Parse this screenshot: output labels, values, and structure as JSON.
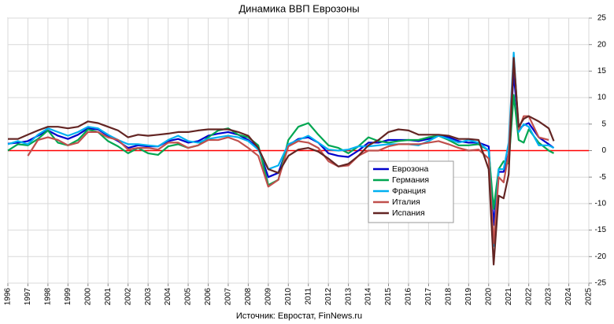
{
  "chart_data": {
    "type": "line",
    "title": "Динамика ВВП Еврозоны",
    "source": "Источник: Евростат, FinNews.ru",
    "x": [
      1996.0,
      1996.5,
      1997.0,
      1997.5,
      1998.0,
      1998.5,
      1999.0,
      1999.5,
      2000.0,
      2000.5,
      2001.0,
      2001.5,
      2002.0,
      2002.5,
      2003.0,
      2003.5,
      2004.0,
      2004.5,
      2005.0,
      2005.5,
      2006.0,
      2006.5,
      2007.0,
      2007.5,
      2008.0,
      2008.5,
      2009.0,
      2009.5,
      2010.0,
      2010.5,
      2011.0,
      2011.5,
      2012.0,
      2012.5,
      2013.0,
      2013.5,
      2014.0,
      2014.5,
      2015.0,
      2015.5,
      2016.0,
      2016.5,
      2017.0,
      2017.5,
      2018.0,
      2018.5,
      2019.0,
      2019.5,
      2020.0,
      2020.25,
      2020.5,
      2020.75,
      2021.0,
      2021.25,
      2021.5,
      2021.75,
      2022.0,
      2022.5,
      2023.0,
      2023.25
    ],
    "series": [
      {
        "name": "Еврозона",
        "color": "#0000cc",
        "values": [
          1.3,
          1.5,
          1.8,
          2.8,
          3.8,
          2.8,
          2.2,
          3.0,
          4.2,
          4.0,
          2.8,
          1.8,
          0.5,
          1.0,
          0.8,
          0.8,
          1.8,
          2.2,
          1.5,
          1.8,
          2.8,
          3.2,
          3.5,
          3.0,
          2.0,
          0.5,
          -5.0,
          -4.2,
          1.0,
          2.2,
          2.5,
          1.5,
          -0.5,
          -1.0,
          -1.2,
          0.0,
          1.5,
          1.5,
          2.0,
          2.0,
          2.0,
          1.8,
          2.2,
          2.8,
          2.5,
          1.8,
          1.5,
          1.5,
          0.8,
          -14.0,
          -4.0,
          -4.0,
          -0.5,
          14.5,
          4.0,
          4.8,
          5.2,
          2.5,
          1.2,
          0.5
        ]
      },
      {
        "name": "Германия",
        "color": "#00a651",
        "values": [
          0.0,
          1.2,
          1.0,
          2.2,
          3.8,
          1.5,
          1.0,
          2.0,
          4.0,
          3.5,
          1.8,
          0.8,
          -0.5,
          0.5,
          -0.5,
          -0.8,
          0.8,
          1.2,
          0.5,
          1.0,
          2.5,
          3.8,
          4.2,
          3.0,
          2.5,
          1.0,
          -6.5,
          -5.5,
          2.0,
          4.5,
          5.2,
          3.0,
          1.0,
          0.5,
          -0.5,
          0.8,
          2.5,
          1.8,
          1.5,
          1.8,
          2.0,
          2.0,
          2.5,
          2.8,
          2.0,
          1.0,
          1.0,
          1.2,
          0.0,
          -11.0,
          -3.5,
          -2.0,
          -2.5,
          10.5,
          2.0,
          1.5,
          4.0,
          1.5,
          0.0,
          -0.5
        ]
      },
      {
        "name": "Франция",
        "color": "#00b0f0",
        "values": [
          1.2,
          1.8,
          1.2,
          3.0,
          4.2,
          3.5,
          2.8,
          3.5,
          4.5,
          4.2,
          3.0,
          2.0,
          1.2,
          1.2,
          1.0,
          0.8,
          2.0,
          2.8,
          1.8,
          1.5,
          2.2,
          2.5,
          2.8,
          2.5,
          1.8,
          0.2,
          -3.5,
          -2.8,
          1.2,
          2.0,
          2.8,
          1.5,
          0.2,
          0.0,
          0.2,
          0.8,
          0.8,
          1.0,
          1.2,
          1.2,
          1.2,
          1.0,
          1.8,
          2.8,
          2.2,
          1.5,
          2.0,
          1.5,
          0.0,
          -18.0,
          -3.5,
          -3.5,
          1.5,
          18.5,
          3.5,
          5.0,
          4.5,
          1.0,
          1.0,
          0.5
        ]
      },
      {
        "name": "Италия",
        "color": "#c0504d",
        "values": [
          null,
          null,
          -1.0,
          2.0,
          2.5,
          2.0,
          1.0,
          1.5,
          3.5,
          3.5,
          2.5,
          2.0,
          0.2,
          0.5,
          0.5,
          0.2,
          1.5,
          1.5,
          0.5,
          1.0,
          2.0,
          2.0,
          2.5,
          1.8,
          0.5,
          -1.0,
          -6.8,
          -5.5,
          0.8,
          1.8,
          1.5,
          0.5,
          -2.0,
          -3.0,
          -2.8,
          -1.0,
          0.0,
          0.0,
          0.8,
          1.2,
          1.2,
          1.2,
          1.5,
          1.8,
          1.2,
          0.5,
          0.0,
          0.2,
          -1.5,
          -17.5,
          -5.0,
          -6.0,
          -0.5,
          17.5,
          4.0,
          6.5,
          6.5,
          2.5,
          2.0,
          null
        ]
      },
      {
        "name": "Испания",
        "color": "#632523",
        "values": [
          2.2,
          2.2,
          3.0,
          3.8,
          4.5,
          4.5,
          4.2,
          4.5,
          5.5,
          5.2,
          4.5,
          3.8,
          2.5,
          3.0,
          2.8,
          3.0,
          3.2,
          3.5,
          3.5,
          3.8,
          4.0,
          4.0,
          4.0,
          3.5,
          2.8,
          0.5,
          -3.5,
          -4.2,
          -1.0,
          0.2,
          0.5,
          -0.2,
          -1.5,
          -3.0,
          -2.5,
          -1.0,
          1.0,
          2.0,
          3.5,
          4.0,
          3.8,
          3.0,
          3.0,
          3.0,
          2.8,
          2.2,
          2.2,
          2.0,
          -3.5,
          -21.5,
          -8.5,
          -9.0,
          -4.5,
          17.5,
          4.5,
          6.0,
          6.5,
          5.5,
          4.2,
          1.8
        ]
      }
    ],
    "xlim": [
      1996,
      2025
    ],
    "xticks": [
      1996,
      1997,
      1998,
      1999,
      2000,
      2001,
      2002,
      2003,
      2004,
      2005,
      2006,
      2007,
      2008,
      2009,
      2010,
      2011,
      2012,
      2013,
      2014,
      2015,
      2016,
      2017,
      2018,
      2019,
      2020,
      2021,
      2022,
      2023,
      2024,
      2025
    ],
    "ylim": [
      -25,
      25
    ],
    "yticks": [
      -25,
      -20,
      -15,
      -10,
      -5,
      0,
      5,
      10,
      15,
      20,
      25
    ],
    "grid": true,
    "zero_line_color": "#ff0000",
    "legend": "center"
  }
}
